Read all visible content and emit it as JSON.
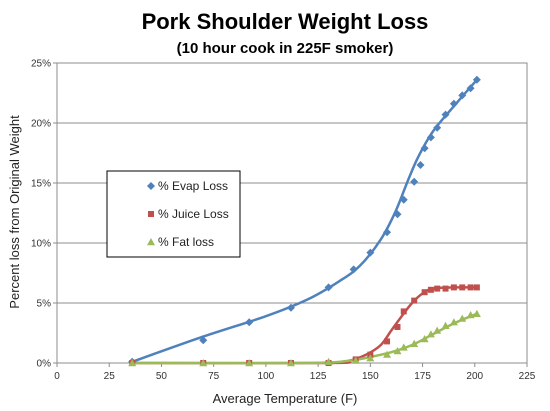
{
  "chart_data": {
    "type": "scatter",
    "title": "Pork Shoulder Weight Loss",
    "subtitle": "(10 hour cook in 225F smoker)",
    "xlabel": "Average Temperature (F)",
    "ylabel": "Percent loss from Original Weight",
    "xlim": [
      0,
      225
    ],
    "ylim": [
      0,
      25
    ],
    "xticks": [
      "0",
      "25",
      "50",
      "75",
      "100",
      "125",
      "150",
      "175",
      "200",
      "225"
    ],
    "yticks": [
      "0%",
      "5%",
      "10%",
      "15%",
      "20%",
      "25%"
    ],
    "grid": "horizontal",
    "legend_position": "left",
    "series": [
      {
        "name": "% Evap Loss",
        "color": "#4f81bd",
        "marker": "diamond",
        "points": [
          [
            36,
            0.1
          ],
          [
            70,
            1.9
          ],
          [
            92,
            3.4
          ],
          [
            112,
            4.6
          ],
          [
            130,
            6.3
          ],
          [
            142,
            7.8
          ],
          [
            150,
            9.2
          ],
          [
            158,
            10.9
          ],
          [
            163,
            12.4
          ],
          [
            166,
            13.6
          ],
          [
            171,
            15.1
          ],
          [
            174,
            16.5
          ],
          [
            176,
            17.9
          ],
          [
            179,
            18.8
          ],
          [
            182,
            19.6
          ],
          [
            186,
            20.7
          ],
          [
            190,
            21.6
          ],
          [
            194,
            22.3
          ],
          [
            198,
            22.9
          ],
          [
            201,
            23.6
          ]
        ],
        "fit": [
          [
            36,
            0.1
          ],
          [
            70,
            2.2
          ],
          [
            100,
            3.9
          ],
          [
            120,
            5.3
          ],
          [
            135,
            6.8
          ],
          [
            145,
            8.1
          ],
          [
            155,
            10.3
          ],
          [
            162,
            12.6
          ],
          [
            168,
            15.2
          ],
          [
            173,
            17.2
          ],
          [
            180,
            19.3
          ],
          [
            190,
            21.4
          ],
          [
            201,
            23.6
          ]
        ]
      },
      {
        "name": "% Juice Loss",
        "color": "#c0504d",
        "marker": "square",
        "points": [
          [
            36,
            0
          ],
          [
            70,
            0
          ],
          [
            92,
            0
          ],
          [
            112,
            0
          ],
          [
            130,
            0
          ],
          [
            143,
            0.3
          ],
          [
            150,
            0.7
          ],
          [
            158,
            1.8
          ],
          [
            163,
            3.0
          ],
          [
            166,
            4.3
          ],
          [
            171,
            5.2
          ],
          [
            176,
            5.9
          ],
          [
            179,
            6.1
          ],
          [
            182,
            6.2
          ],
          [
            186,
            6.2
          ],
          [
            190,
            6.3
          ],
          [
            194,
            6.3
          ],
          [
            198,
            6.3
          ],
          [
            201,
            6.3
          ]
        ],
        "fit": [
          [
            36,
            0
          ],
          [
            130,
            0
          ],
          [
            140,
            0.2
          ],
          [
            148,
            0.7
          ],
          [
            155,
            1.5
          ],
          [
            160,
            2.7
          ],
          [
            165,
            3.9
          ],
          [
            170,
            5.0
          ],
          [
            175,
            5.8
          ],
          [
            180,
            6.2
          ],
          [
            190,
            6.3
          ],
          [
            201,
            6.3
          ]
        ]
      },
      {
        "name": "% Fat loss",
        "color": "#9bbb59",
        "marker": "triangle",
        "points": [
          [
            36,
            0
          ],
          [
            70,
            0
          ],
          [
            92,
            0
          ],
          [
            112,
            0
          ],
          [
            130,
            0.1
          ],
          [
            143,
            0.2
          ],
          [
            150,
            0.4
          ],
          [
            158,
            0.7
          ],
          [
            163,
            1.0
          ],
          [
            166,
            1.3
          ],
          [
            171,
            1.6
          ],
          [
            176,
            2.0
          ],
          [
            179,
            2.4
          ],
          [
            182,
            2.7
          ],
          [
            186,
            3.1
          ],
          [
            190,
            3.4
          ],
          [
            194,
            3.7
          ],
          [
            198,
            4.0
          ],
          [
            201,
            4.1
          ]
        ],
        "fit": [
          [
            36,
            0
          ],
          [
            120,
            0
          ],
          [
            140,
            0.2
          ],
          [
            150,
            0.5
          ],
          [
            160,
            0.9
          ],
          [
            170,
            1.5
          ],
          [
            180,
            2.4
          ],
          [
            190,
            3.3
          ],
          [
            201,
            4.1
          ]
        ]
      }
    ]
  }
}
